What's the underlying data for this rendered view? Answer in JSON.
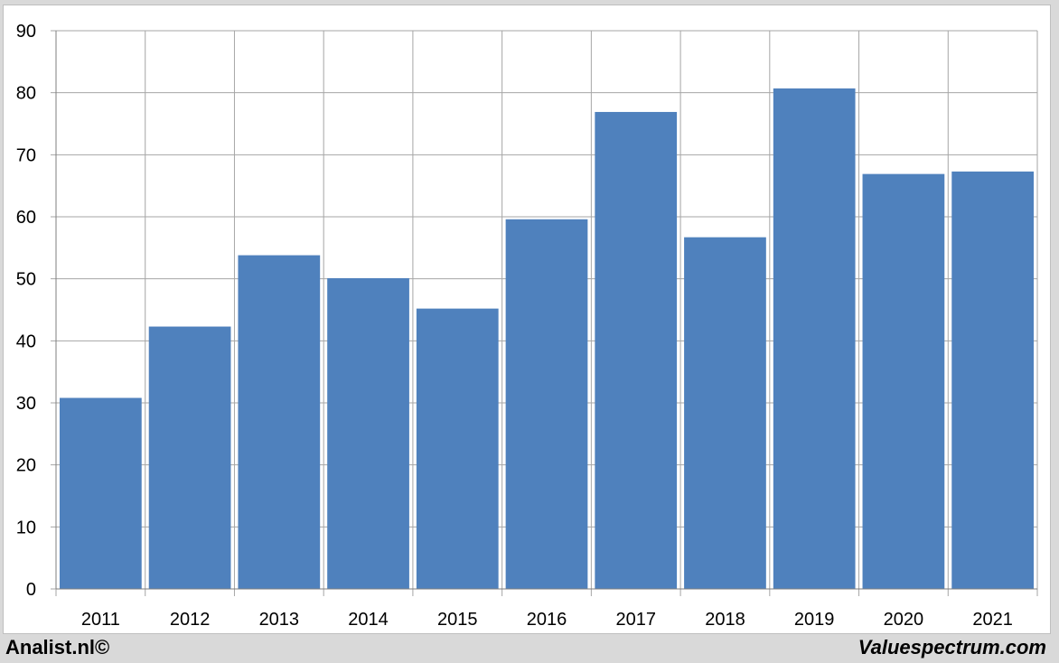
{
  "footer": {
    "left_credit": "Analist.nl©",
    "right_credit": "Valuespectrum.com"
  },
  "colors": {
    "bar": "#4f81bd",
    "grid": "#a6a6a6",
    "background": "#ffffff"
  },
  "chart_data": {
    "type": "bar",
    "categories": [
      "2011",
      "2012",
      "2013",
      "2014",
      "2015",
      "2016",
      "2017",
      "2018",
      "2019",
      "2020",
      "2021"
    ],
    "values": [
      30.8,
      42.3,
      53.8,
      50.1,
      45.2,
      59.6,
      76.9,
      56.7,
      80.7,
      66.9,
      67.3
    ],
    "title": "",
    "xlabel": "",
    "ylabel": "",
    "ylim": [
      0,
      90
    ],
    "yticks": [
      0,
      10,
      20,
      30,
      40,
      50,
      60,
      70,
      80,
      90
    ],
    "grid": true,
    "legend": "none"
  }
}
